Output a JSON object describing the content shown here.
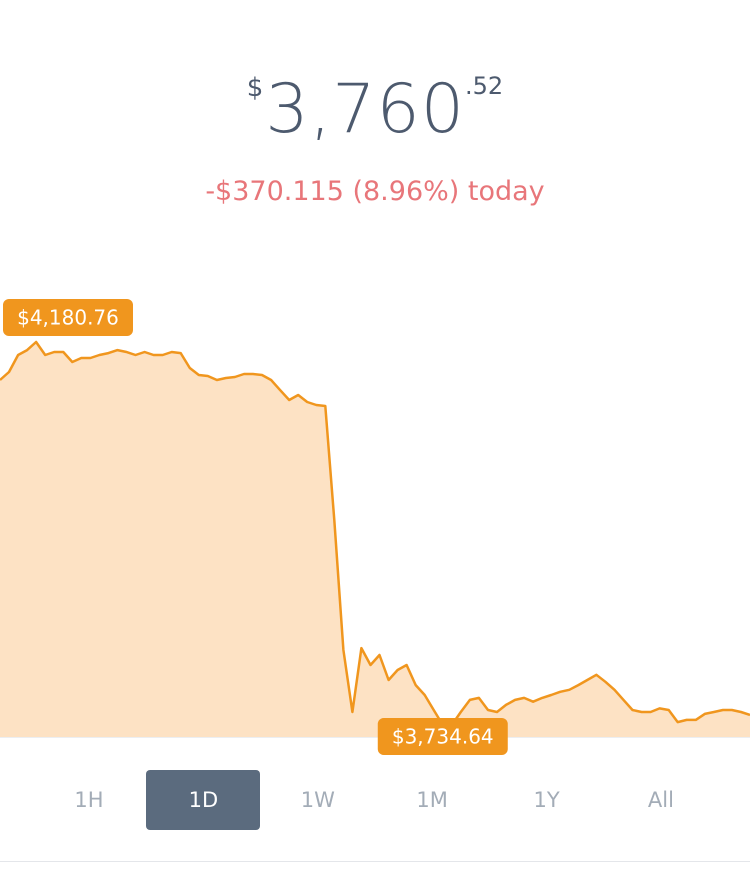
{
  "header": {
    "currency": "$",
    "price": "3,760",
    "cents": ".52",
    "change": "-$370.115 (8.96%) today"
  },
  "chart_data": {
    "type": "area",
    "color": "#f0961e",
    "fill": "#fde2c4",
    "values": [
      4136.5,
      4145.8,
      4165.6,
      4171.4,
      4180.76,
      4165.6,
      4169.1,
      4169.1,
      4157.5,
      4162.1,
      4162.1,
      4165.6,
      4167.9,
      4171.4,
      4169.1,
      4165.6,
      4169.1,
      4165.6,
      4165.6,
      4169.1,
      4167.9,
      4150.5,
      4142.3,
      4141.2,
      4136.5,
      4138.8,
      4140.0,
      4143.5,
      4143.5,
      4142.3,
      4136.5,
      4124.8,
      4113.2,
      4119.0,
      4110.9,
      4107.4,
      4106.2,
      3973.4,
      3822.0,
      3749.8,
      3824.3,
      3804.6,
      3816.2,
      3787.1,
      3798.7,
      3804.6,
      3781.2,
      3769.6,
      3752.1,
      3734.64,
      3734.64,
      3749.8,
      3763.9,
      3766.2,
      3752.1,
      3749.8,
      3758.1,
      3763.9,
      3766.2,
      3761.8,
      3766.2,
      3769.6,
      3773.4,
      3775.7,
      3781.2,
      3787.1,
      3793.2,
      3785.0,
      3775.7,
      3763.9,
      3752.1,
      3749.8,
      3749.8,
      3754.0,
      3752.1,
      3738.1,
      3740.6,
      3740.6,
      3747.6,
      3749.8,
      3752.1,
      3752.1,
      3749.8,
      3746.4
    ],
    "ylim": [
      3720.7,
      4229.7
    ],
    "annotations": [
      {
        "value": 4180.76,
        "label": "$4,180.76"
      },
      {
        "value": 3734.64,
        "label": "$3,734.64"
      }
    ]
  },
  "tabs": {
    "items": [
      "1H",
      "1D",
      "1W",
      "1M",
      "1Y",
      "All"
    ],
    "selected": 1
  }
}
